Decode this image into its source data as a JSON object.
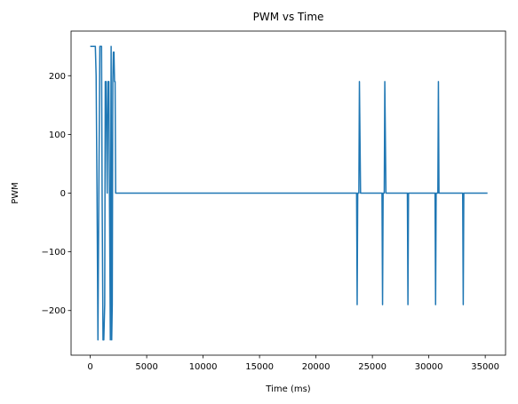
{
  "chart_data": {
    "type": "line",
    "title": "PWM vs Time",
    "xlabel": "Time (ms)",
    "ylabel": "PWM",
    "xlim": [
      -1700,
      36800
    ],
    "ylim": [
      -276,
      276
    ],
    "xticks": [
      0,
      5000,
      10000,
      15000,
      20000,
      25000,
      30000,
      35000
    ],
    "yticks": [
      -200,
      -100,
      0,
      100,
      200
    ],
    "ytick_labels": [
      "−200",
      "−100",
      "0",
      "100",
      "200"
    ],
    "grid": false,
    "line_color": "#1f77b4",
    "series": [
      {
        "x": [
          0,
          450,
          520,
          600,
          680,
          760,
          850,
          1000,
          1050,
          1130,
          1200,
          1280,
          1330,
          1400,
          1500,
          1570,
          1650,
          1700,
          1780,
          1850,
          1900,
          1950,
          2000,
          2050,
          2100,
          2150,
          2200,
          2250,
          2350,
          2450,
          2550,
          2600,
          23600,
          23650,
          23700,
          23800,
          23850,
          23950,
          24000,
          25850,
          25900,
          25950,
          26050,
          26100,
          26200,
          26250,
          28100,
          28150,
          28200,
          30550,
          30600,
          30650,
          30800,
          30850,
          30900,
          30950,
          33000,
          33050,
          33100,
          35200
        ],
        "y": [
          250,
          250,
          200,
          0,
          -250,
          0,
          250,
          250,
          0,
          -250,
          -250,
          -190,
          190,
          190,
          0,
          190,
          190,
          0,
          -250,
          250,
          -250,
          -190,
          190,
          240,
          240,
          190,
          190,
          0,
          0,
          0,
          0,
          0,
          0,
          -190,
          0,
          0,
          190,
          0,
          0,
          0,
          -190,
          0,
          0,
          190,
          0,
          0,
          0,
          -190,
          0,
          0,
          -190,
          0,
          0,
          190,
          0,
          0,
          0,
          -190,
          0,
          0
        ]
      }
    ]
  }
}
